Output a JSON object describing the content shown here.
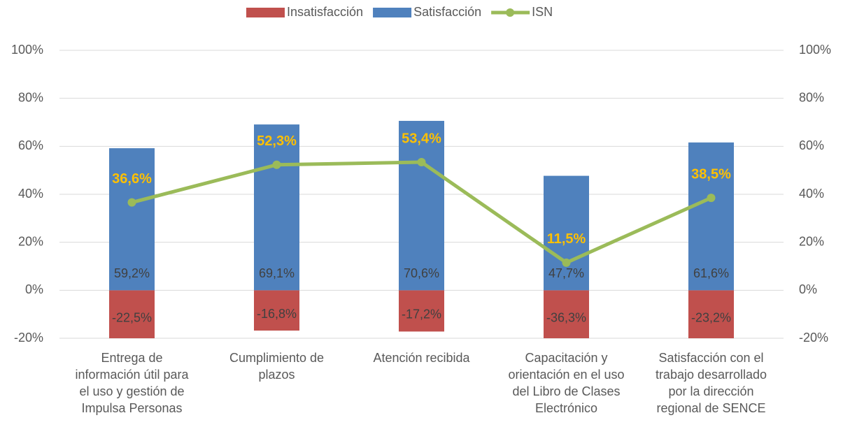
{
  "chart_data": {
    "type": "bar",
    "categories": [
      [
        "Entrega de",
        "información útil para",
        "el uso y gestión de",
        "Impulsa Personas"
      ],
      [
        "Cumplimiento de",
        "plazos"
      ],
      [
        "Atención recibida"
      ],
      [
        "Capacitación y",
        "orientación en el uso",
        "del Libro de Clases",
        "Electrónico"
      ],
      [
        "Satisfacción con el",
        "trabajo desarrollado",
        "por la dirección",
        "regional de SENCE"
      ]
    ],
    "series": [
      {
        "name": "Insatisfacción",
        "color": "#c0504d",
        "values": [
          -22.5,
          -16.8,
          -17.2,
          -36.3,
          -23.2
        ],
        "value_labels": [
          "-22,5%",
          "-16,8%",
          "-17,2%",
          "-36,3%",
          "-23,2%"
        ]
      },
      {
        "name": "Satisfacción",
        "color": "#4f81bd",
        "values": [
          59.2,
          69.1,
          70.6,
          47.7,
          61.6
        ],
        "value_labels": [
          "59,2%",
          "69,1%",
          "70,6%",
          "47,7%",
          "61,6%"
        ]
      },
      {
        "name": "ISN",
        "type": "line",
        "axis": "y2",
        "color": "#9bbb59",
        "values": [
          36.6,
          52.3,
          53.4,
          11.5,
          38.5
        ],
        "value_labels": [
          "36,6%",
          "52,3%",
          "53,4%",
          "11,5%",
          "38,5%"
        ],
        "label_color": "#ffc000"
      }
    ],
    "ylim": [
      -20,
      100
    ],
    "yticks": [
      {
        "value": -20,
        "label": "-20%"
      },
      {
        "value": 0,
        "label": "0%"
      },
      {
        "value": 20,
        "label": "20%"
      },
      {
        "value": 40,
        "label": "40%"
      },
      {
        "value": 60,
        "label": "60%"
      },
      {
        "value": 80,
        "label": "80%"
      },
      {
        "value": 100,
        "label": "100%"
      }
    ],
    "y2lim": [
      -20,
      100
    ],
    "y2ticks": [
      {
        "value": -20,
        "label": "-20%"
      },
      {
        "value": 0,
        "label": "0%"
      },
      {
        "value": 20,
        "label": "20%"
      },
      {
        "value": 40,
        "label": "40%"
      },
      {
        "value": 60,
        "label": "60%"
      },
      {
        "value": 80,
        "label": "80%"
      },
      {
        "value": 100,
        "label": "100%"
      }
    ],
    "grid": true,
    "legend": "top"
  }
}
